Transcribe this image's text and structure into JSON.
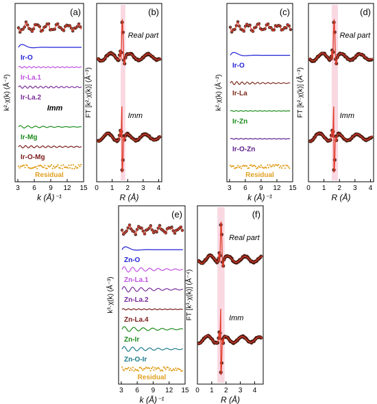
{
  "chart_data": [
    {
      "panel": "(a)",
      "type": "line",
      "xlabel": "k (Å)⁻¹",
      "ylabel": "k²·χ(k) (Å⁻²)",
      "xticks": [
        3,
        6,
        9,
        12,
        15
      ],
      "xlim": [
        2.5,
        15
      ],
      "components": [
        {
          "name": "",
          "kind": "fit",
          "color": "#8b1a1a"
        },
        {
          "name": "Ir-O",
          "kind": "wave",
          "color": "#1f1fd6",
          "amplitude": 0.9,
          "period": 2.3,
          "decay": 0.12
        },
        {
          "name": "Ir-La.1",
          "kind": "wave",
          "color": "#c050e0",
          "amplitude": 0.12,
          "period": 0.5,
          "decay": 0.01
        },
        {
          "name": "Ir-La.2",
          "kind": "wave",
          "color": "#7a2a9a",
          "amplitude": 0.18,
          "period": 0.55,
          "decay": 0.01
        },
        {
          "name": "Imm",
          "kind": "note"
        },
        {
          "name": "Ir-Mg",
          "kind": "wave",
          "color": "#1a8a1a",
          "amplitude": 0.2,
          "period": 0.8,
          "decay": 0.02
        },
        {
          "name": "Ir-O-Mg",
          "kind": "wave",
          "color": "#7a1a1a",
          "amplitude": 0.18,
          "period": 0.6,
          "decay": 0.01
        },
        {
          "name": "Residual",
          "kind": "noise",
          "color": "#e0a020"
        }
      ]
    },
    {
      "panel": "(b)",
      "type": "line",
      "xlabel": "R (Å)",
      "ylabel": "FT [k²·χ(k)] (Å⁻³)",
      "xticks": [
        0,
        1,
        2,
        3,
        4
      ],
      "xlim": [
        0,
        4.2
      ],
      "highlight_r": [
        1.55,
        1.85
      ],
      "parts": [
        {
          "name": "Real part",
          "kind": "real"
        },
        {
          "name": "Imm",
          "kind": "imag"
        }
      ]
    },
    {
      "panel": "(c)",
      "type": "line",
      "xlabel": "k (Å)⁻¹",
      "ylabel": "k²·χ(k) (Å⁻²)",
      "xticks": [
        3,
        6,
        9,
        12,
        15
      ],
      "xlim": [
        2.5,
        15
      ],
      "components": [
        {
          "name": "",
          "kind": "fit",
          "color": "#8b1a1a"
        },
        {
          "name": "Ir-O",
          "kind": "wave",
          "color": "#1f1fd6",
          "amplitude": 0.9,
          "period": 2.3,
          "decay": 0.12
        },
        {
          "name": "Ir-La",
          "kind": "wave",
          "color": "#7a2a1a",
          "amplitude": 0.25,
          "period": 0.55,
          "decay": 0.02
        },
        {
          "name": "Ir-Zn",
          "kind": "wave",
          "color": "#1a8a1a",
          "amplitude": 0.06,
          "period": 0.5,
          "decay": 0.01
        },
        {
          "name": "Ir-O-Zn",
          "kind": "wave",
          "color": "#5a1a8a",
          "amplitude": 0.06,
          "period": 0.5,
          "decay": 0.01
        },
        {
          "name": "Residual",
          "kind": "noise",
          "color": "#e0a020"
        }
      ]
    },
    {
      "panel": "(d)",
      "type": "line",
      "xlabel": "R (Å)",
      "ylabel": "FT [k²·χ(k)] (Å⁻³)",
      "xticks": [
        0,
        1,
        2,
        3,
        4
      ],
      "xlim": [
        0,
        4.2
      ],
      "highlight_r": [
        1.5,
        1.9
      ],
      "parts": [
        {
          "name": "Real part",
          "kind": "real"
        },
        {
          "name": "Imm",
          "kind": "imag"
        }
      ]
    },
    {
      "panel": "(e)",
      "type": "line",
      "xlabel": "k (Å)⁻¹",
      "ylabel": "k³·χ(k) (Å⁻³)",
      "xticks": [
        3,
        6,
        9,
        12,
        15
      ],
      "xlim": [
        2.5,
        15
      ],
      "components": [
        {
          "name": "",
          "kind": "fit",
          "color": "#8b1a1a"
        },
        {
          "name": "Zn-O",
          "kind": "wave",
          "color": "#1f1fd6",
          "amplitude": 0.9,
          "period": 2.3,
          "decay": 0.12
        },
        {
          "name": "Zn-La.1",
          "kind": "wave",
          "color": "#c050e0",
          "amplitude": 0.45,
          "period": 0.9,
          "decay": 0.02
        },
        {
          "name": "Zn-La.2",
          "kind": "wave",
          "color": "#7a2a9a",
          "amplitude": 0.45,
          "period": 0.9,
          "decay": 0.02
        },
        {
          "name": "Zn-La.4",
          "kind": "wave",
          "color": "#7a1a1a",
          "amplitude": 0.1,
          "period": 0.55,
          "decay": 0.01
        },
        {
          "name": "Zn-Ir",
          "kind": "wave",
          "color": "#1a8a1a",
          "amplitude": 0.4,
          "period": 1.0,
          "decay": 0.02
        },
        {
          "name": "Zn-O-Ir",
          "kind": "wave",
          "color": "#1a7a8a",
          "amplitude": 0.4,
          "period": 0.9,
          "decay": 0.02
        },
        {
          "name": "Residual",
          "kind": "noise",
          "color": "#e0a020"
        }
      ]
    },
    {
      "panel": "(f)",
      "type": "line",
      "xlabel": "R (Å)",
      "ylabel": "FT [k³·χ(k)] (Å⁻⁴)",
      "xticks": [
        0,
        1,
        2,
        3,
        4
      ],
      "xlim": [
        0,
        4.6
      ],
      "highlight_r": [
        1.4,
        1.9
      ],
      "parts": [
        {
          "name": "Real part",
          "kind": "real"
        },
        {
          "name": "Imm",
          "kind": "imag"
        }
      ]
    }
  ],
  "colors": {
    "data_marker": "#4a1a10",
    "fit_line": "#e03a2a",
    "highlight": "#f4b8c8",
    "axis": "#000000"
  }
}
